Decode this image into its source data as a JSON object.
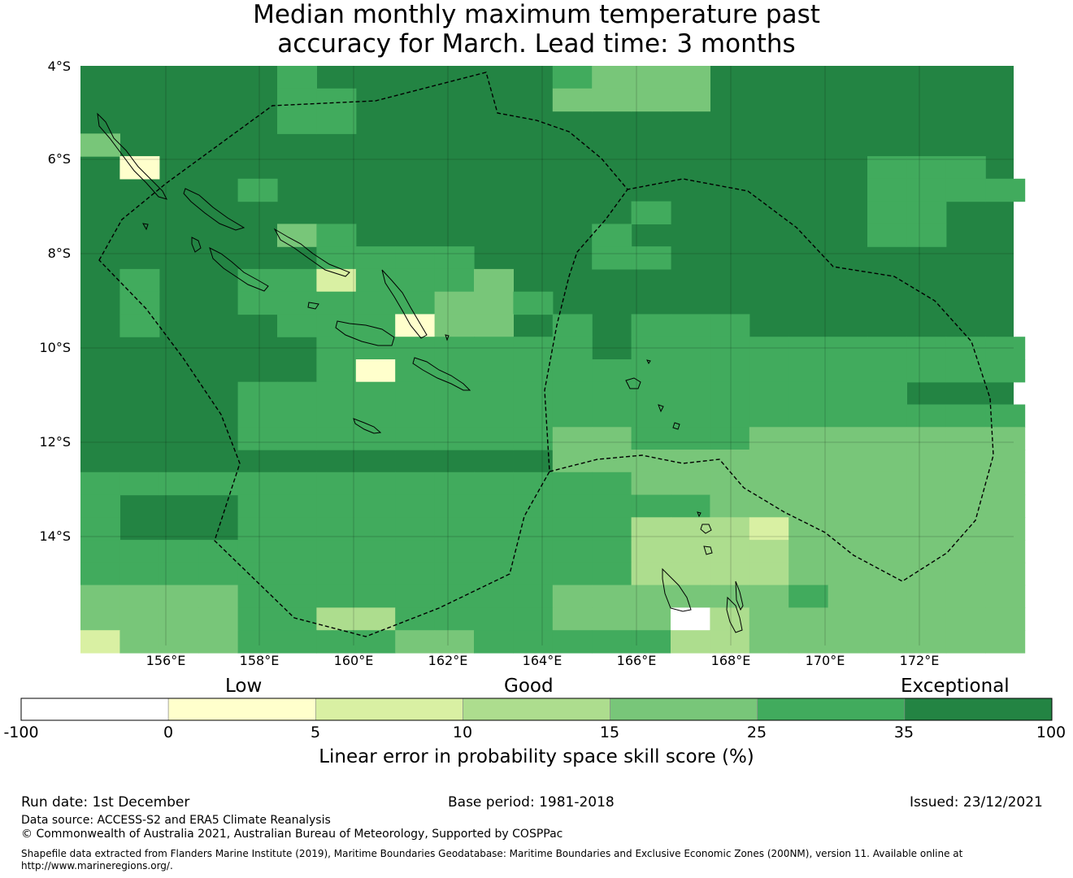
{
  "title": {
    "line1": "Median monthly maximum temperature past",
    "line2": "accuracy for March. Lead time: 3 months"
  },
  "map": {
    "latitude_labels": [
      "4°S",
      "6°S",
      "8°S",
      "10°S",
      "12°S",
      "14°S"
    ],
    "longitude_labels": [
      "156°E",
      "158°E",
      "160°E",
      "162°E",
      "164°E",
      "166°E",
      "168°E",
      "170°E",
      "172°E"
    ],
    "lon_range": [
      154.2,
      174.0
    ],
    "lat_range": [
      -4.0,
      -16.3
    ],
    "background_color": "#238443"
  },
  "legend": {
    "category_labels": [
      "Low",
      "Good",
      "Exceptional"
    ],
    "tick_labels": [
      "-100",
      "0",
      "5",
      "10",
      "15",
      "25",
      "35",
      "100"
    ],
    "colors": [
      "#ffffff",
      "#ffffcc",
      "#d9f0a3",
      "#addd8e",
      "#78c679",
      "#41ab5d",
      "#238443"
    ],
    "title": "Linear error in probability space skill score (%)"
  },
  "footer": {
    "run_date": "Run date: 1st December",
    "base_period": "Base period: 1981-2018",
    "issued": "Issued: 23/12/2021",
    "data_source": "Data source: ACCESS-S2 and ERA5 Climate Reanalysis",
    "copyright": "© Commonwealth of Australia 2021, Australian Bureau of Meteorology, Supported by COSPPac",
    "shapefile_line1": "Shapefile data extracted from Flanders Marine Institute (2019), Maritime Boundaries Geodatabase: Maritime Boundaries and Exclusive Economic Zones (200NM), version 11. Available online at",
    "shapefile_line2": "http://www.marineregions.org/."
  }
}
